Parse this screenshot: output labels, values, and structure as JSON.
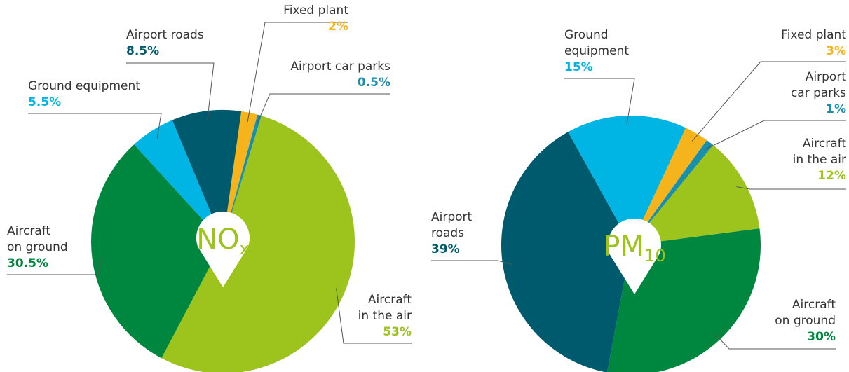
{
  "chart_data": [
    {
      "type": "pie",
      "title": "NO",
      "title_subscript": "x",
      "categories": [
        "Fixed plant",
        "Airport car parks",
        "Aircraft\nin the air",
        "Aircraft\non ground",
        "Ground equipment",
        "Airport roads"
      ],
      "values": [
        2,
        0.5,
        53,
        30.5,
        5.5,
        8.5
      ],
      "value_labels": [
        "2%",
        "0.5%",
        "53%",
        "30.5%",
        "5.5%",
        "8.5%"
      ],
      "colors": [
        "#f6b41c",
        "#1a8fac",
        "#9dc31d",
        "#00873f",
        "#00b4e4",
        "#005a6e"
      ]
    },
    {
      "type": "pie",
      "title": "PM",
      "title_subscript": "10",
      "categories": [
        "Fixed plant",
        "Airport\ncar parks",
        "Aircraft\nin the air",
        "Aircraft\non ground",
        "Airport\nroads",
        "Ground\nequipment"
      ],
      "values": [
        3,
        1,
        12,
        30,
        39,
        15
      ],
      "value_labels": [
        "3%",
        "1%",
        "12%",
        "30%",
        "39%",
        "15%"
      ],
      "colors": [
        "#f6b41c",
        "#1a8fac",
        "#9dc31d",
        "#00873f",
        "#005a6e",
        "#00b4e4"
      ]
    }
  ]
}
